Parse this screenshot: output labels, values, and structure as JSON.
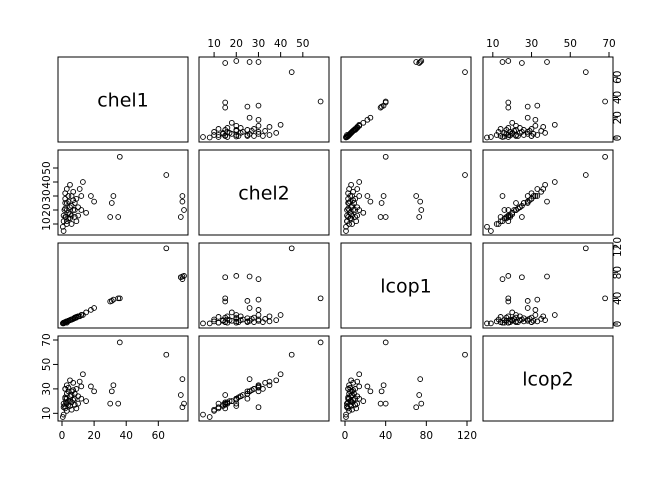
{
  "chart_data": {
    "type": "scatter",
    "variables": [
      "chel1",
      "chel2",
      "lcop1",
      "lcop2"
    ],
    "axes": {
      "chel1": {
        "range": [
          0,
          76
        ],
        "ticks": [
          0,
          20,
          40,
          60
        ],
        "tick_labels": [
          "0",
          "20",
          "40",
          "60"
        ]
      },
      "chel2": {
        "range": [
          5,
          60
        ],
        "ticks": [
          10,
          30,
          50
        ],
        "tick_labels": [
          "10",
          "30",
          "50"
        ],
        "ticks_alt": [
          10,
          20,
          30,
          40,
          50
        ],
        "tick_labels_alt": [
          "10",
          "20",
          "30",
          "40",
          "50"
        ]
      },
      "lcop1": {
        "range": [
          0,
          120
        ],
        "ticks": [
          0,
          40,
          80,
          120
        ],
        "tick_labels": [
          "0",
          "40",
          "80",
          "120"
        ],
        "ticks_alt": [
          0,
          20,
          40,
          60,
          80,
          100,
          120
        ],
        "tick_labels_alt": [
          "0",
          "20",
          "40",
          "60",
          "80",
          "100",
          "120"
        ]
      },
      "lcop2": {
        "range": [
          7,
          70
        ],
        "ticks": [
          10,
          30,
          50,
          70
        ],
        "tick_labels": [
          "10",
          "30",
          "50",
          "70"
        ],
        "ticks_alt": [
          10,
          20,
          30,
          40,
          50,
          60,
          70
        ],
        "tick_labels_alt": [
          "10",
          "20",
          "30",
          "40",
          "50",
          "60",
          "70"
        ]
      }
    },
    "observations": [
      [
        0.5,
        8,
        1,
        7
      ],
      [
        1,
        5,
        1,
        9
      ],
      [
        2,
        15,
        3,
        14
      ],
      [
        3,
        12,
        2,
        18
      ],
      [
        1.5,
        20,
        2,
        16
      ],
      [
        4,
        18,
        5,
        20
      ],
      [
        2,
        25,
        3,
        22
      ],
      [
        5,
        22,
        6,
        24
      ],
      [
        3,
        10,
        4,
        12
      ],
      [
        6,
        30,
        7,
        28
      ],
      [
        2.5,
        15,
        3,
        19
      ],
      [
        7,
        20,
        8,
        21
      ],
      [
        4,
        14,
        5,
        17
      ],
      [
        8,
        25,
        9,
        26
      ],
      [
        3,
        35,
        4,
        33
      ],
      [
        5,
        17,
        6,
        20
      ],
      [
        6,
        23,
        7,
        25
      ],
      [
        9,
        28,
        10,
        30
      ],
      [
        1,
        12,
        2,
        15
      ],
      [
        2,
        21,
        3,
        23
      ],
      [
        4,
        30,
        5,
        31
      ],
      [
        5,
        38,
        6,
        37
      ],
      [
        7,
        33,
        8,
        35
      ],
      [
        3,
        25,
        4,
        26
      ],
      [
        6,
        16,
        7,
        19
      ],
      [
        10,
        22,
        12,
        24
      ],
      [
        8,
        15,
        10,
        17
      ],
      [
        11,
        35,
        12,
        36
      ],
      [
        12,
        20,
        14,
        22
      ],
      [
        9,
        12,
        11,
        14
      ],
      [
        2,
        32,
        3,
        30
      ],
      [
        4,
        26,
        5,
        28
      ],
      [
        6,
        10,
        7,
        13
      ],
      [
        13,
        40,
        14,
        42
      ],
      [
        15,
        18,
        18,
        20
      ],
      [
        1,
        16,
        2,
        18
      ],
      [
        3,
        20,
        4,
        22
      ],
      [
        5,
        14,
        6,
        16
      ],
      [
        7,
        27,
        8,
        29
      ],
      [
        10,
        16,
        12,
        18
      ],
      [
        18,
        30,
        22,
        32
      ],
      [
        20,
        26,
        25,
        28
      ],
      [
        12,
        30,
        14,
        32
      ],
      [
        8,
        20,
        10,
        22
      ],
      [
        2,
        28,
        3,
        30
      ],
      [
        30,
        15,
        35,
        18
      ],
      [
        31,
        25,
        36,
        28
      ],
      [
        32,
        30,
        38,
        33
      ],
      [
        35,
        15,
        40,
        18
      ],
      [
        36,
        58,
        40,
        68
      ],
      [
        65,
        45,
        118,
        58
      ],
      [
        75,
        30,
        70,
        15
      ],
      [
        76,
        20,
        75,
        18
      ],
      [
        74,
        15,
        73,
        25
      ],
      [
        75,
        26,
        74,
        38
      ]
    ]
  }
}
